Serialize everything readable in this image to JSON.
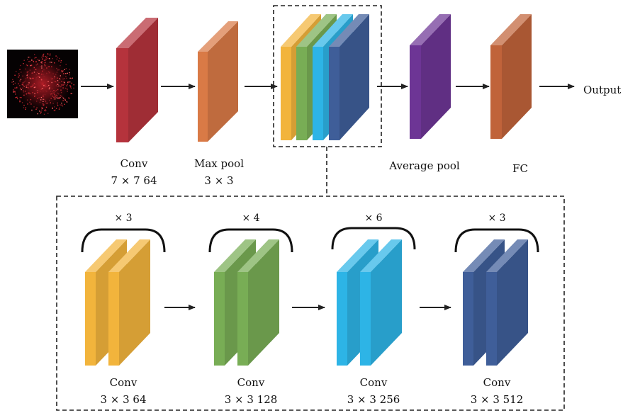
{
  "input": {
    "icon": "speckle-image-icon"
  },
  "top_row": {
    "conv1": {
      "title": "Conv",
      "params": "7 × 7 64",
      "color": "#b5333c"
    },
    "maxpool": {
      "title": "Max pool",
      "params": "3 × 3",
      "color": "#d97a46"
    },
    "stages_group": {
      "colors": [
        "#f2b43c",
        "#78ad55",
        "#2db4e6",
        "#3f5e99"
      ]
    },
    "avgpool": {
      "title": "Average pool",
      "color": "#6d3595"
    },
    "fc": {
      "title": "FC",
      "color": "#c0633a"
    },
    "output": {
      "label": "Output"
    }
  },
  "stages": [
    {
      "repeat": "× 3",
      "title": "Conv",
      "params": "3 × 3 64",
      "color": "#f2b43c"
    },
    {
      "repeat": "× 4",
      "title": "Conv",
      "params": "3 × 3 128",
      "color": "#78ad55"
    },
    {
      "repeat": "× 6",
      "title": "Conv",
      "params": "3 × 3 256",
      "color": "#2db4e6"
    },
    {
      "repeat": "× 3",
      "title": "Conv",
      "params": "3 × 3 512",
      "color": "#3f5e99"
    }
  ]
}
